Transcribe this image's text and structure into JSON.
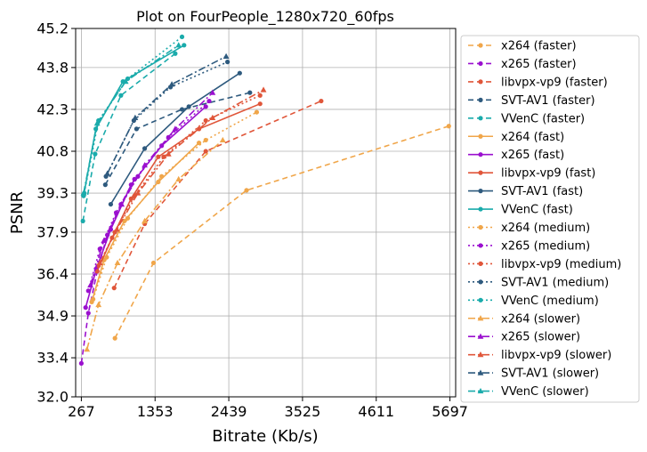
{
  "chart_data": {
    "type": "line",
    "title": "Plot on FourPeople_1280x720_60fps",
    "xlabel": "Bitrate (Kb/s)",
    "ylabel": "PSNR",
    "xlim": [
      267,
      5697
    ],
    "ylim": [
      32.0,
      45.2
    ],
    "xticks": [
      "267",
      "1353",
      "2439",
      "3525",
      "4611",
      "5697"
    ],
    "yticks": [
      "32.0",
      "33.4",
      "34.9",
      "36.4",
      "37.9",
      "39.3",
      "40.8",
      "42.3",
      "43.8",
      "45.2"
    ],
    "grid": true,
    "legend_position": "right-outside",
    "colors": {
      "x264": "#f0a64a",
      "x265": "#9b10cf",
      "libvpx-vp9": "#e0563a",
      "SVT-AV1": "#2e5a7e",
      "VVenC": "#1aabab"
    },
    "series": [
      {
        "name": "x264 (faster)",
        "codec": "x264",
        "preset": "faster",
        "x": [
          762,
          1330,
          2700,
          5680
        ],
        "y": [
          34.1,
          36.8,
          39.4,
          41.7
        ]
      },
      {
        "name": "x265 (faster)",
        "codec": "x265",
        "preset": "faster",
        "x": [
          267,
          370,
          500,
          650,
          850,
          1050
        ],
        "y": [
          33.2,
          35.0,
          36.5,
          37.8,
          38.9,
          39.8
        ]
      },
      {
        "name": "libvpx-vp9 (faster)",
        "codec": "libvpx-vp9",
        "preset": "faster",
        "x": [
          750,
          1200,
          2100,
          3800
        ],
        "y": [
          35.9,
          38.2,
          40.8,
          42.6
        ]
      },
      {
        "name": "SVT-AV1 (faster)",
        "codec": "SVT-AV1",
        "preset": "faster",
        "x": [
          620,
          1080,
          1750,
          2750
        ],
        "y": [
          39.6,
          41.6,
          42.3,
          42.9
        ]
      },
      {
        "name": "VVenC (faster)",
        "codec": "VVenC",
        "preset": "faster",
        "x": [
          290,
          470,
          850,
          1650
        ],
        "y": [
          38.3,
          40.7,
          42.8,
          44.3
        ]
      },
      {
        "name": "x264 (fast)",
        "codec": "x264",
        "preset": "fast",
        "x": [
          420,
          600,
          900,
          1400,
          2000
        ],
        "y": [
          35.4,
          36.9,
          38.3,
          39.7,
          41.1
        ]
      },
      {
        "name": "x265 (fast)",
        "codec": "x265",
        "preset": "fast",
        "x": [
          330,
          490,
          700,
          1000,
          1450,
          2100
        ],
        "y": [
          35.2,
          36.6,
          38.0,
          39.6,
          41.0,
          42.4
        ]
      },
      {
        "name": "libvpx-vp9 (fast)",
        "codec": "libvpx-vp9",
        "preset": "fast",
        "x": [
          500,
          720,
          1000,
          1400,
          2000,
          2900
        ],
        "y": [
          36.5,
          37.7,
          39.1,
          40.6,
          41.6,
          42.5
        ]
      },
      {
        "name": "SVT-AV1 (fast)",
        "codec": "SVT-AV1",
        "preset": "fast",
        "x": [
          700,
          1200,
          1850,
          2600
        ],
        "y": [
          38.9,
          40.9,
          42.4,
          43.6
        ]
      },
      {
        "name": "VVenC (fast)",
        "codec": "VVenC",
        "preset": "fast",
        "x": [
          300,
          480,
          880,
          1780
        ],
        "y": [
          39.2,
          41.6,
          43.3,
          44.6
        ]
      },
      {
        "name": "x264 (medium)",
        "codec": "x264",
        "preset": "medium",
        "x": [
          440,
          640,
          950,
          1450,
          2100,
          2850
        ],
        "y": [
          35.5,
          37.0,
          38.4,
          39.9,
          41.2,
          42.2
        ]
      },
      {
        "name": "x265 (medium)",
        "codec": "x265",
        "preset": "medium",
        "x": [
          370,
          540,
          780,
          1100,
          1550,
          2150
        ],
        "y": [
          35.8,
          37.3,
          38.6,
          39.9,
          41.3,
          42.6
        ]
      },
      {
        "name": "libvpx-vp9 (medium)",
        "codec": "libvpx-vp9",
        "preset": "medium",
        "x": [
          520,
          760,
          1050,
          1480,
          2100,
          2900
        ],
        "y": [
          36.7,
          37.9,
          39.2,
          40.6,
          41.9,
          42.8
        ]
      },
      {
        "name": "SVT-AV1 (medium)",
        "codec": "SVT-AV1",
        "preset": "medium",
        "x": [
          630,
          1040,
          1580,
          2420
        ],
        "y": [
          39.9,
          41.9,
          43.1,
          44.0
        ]
      },
      {
        "name": "VVenC (medium)",
        "codec": "VVenC",
        "preset": "medium",
        "x": [
          310,
          520,
          950,
          1750
        ],
        "y": [
          39.3,
          41.9,
          43.4,
          44.9
        ]
      },
      {
        "name": "x264 (slower)",
        "codec": "x264",
        "preset": "slower",
        "x": [
          350,
          520,
          800,
          1200,
          1700,
          2350
        ],
        "y": [
          33.7,
          35.3,
          36.8,
          38.3,
          39.8,
          41.2
        ]
      },
      {
        "name": "x265 (slower)",
        "codec": "x265",
        "preset": "slower",
        "x": [
          400,
          600,
          860,
          1200,
          1650,
          2200
        ],
        "y": [
          36.0,
          37.6,
          38.9,
          40.3,
          41.6,
          42.9
        ]
      },
      {
        "name": "libvpx-vp9 (slower)",
        "codec": "libvpx-vp9",
        "preset": "slower",
        "x": [
          540,
          790,
          1100,
          1550,
          2200,
          2950
        ],
        "y": [
          36.8,
          38.0,
          39.3,
          40.7,
          42.0,
          43.0
        ]
      },
      {
        "name": "SVT-AV1 (slower)",
        "codec": "SVT-AV1",
        "preset": "slower",
        "x": [
          650,
          1060,
          1600,
          2400
        ],
        "y": [
          40.0,
          42.0,
          43.2,
          44.2
        ]
      },
      {
        "name": "VVenC (slower)",
        "codec": "VVenC",
        "preset": "slower",
        "x": [
          300,
          500,
          920,
          1700
        ],
        "y": [
          39.3,
          41.8,
          43.3,
          44.6
        ]
      }
    ]
  }
}
